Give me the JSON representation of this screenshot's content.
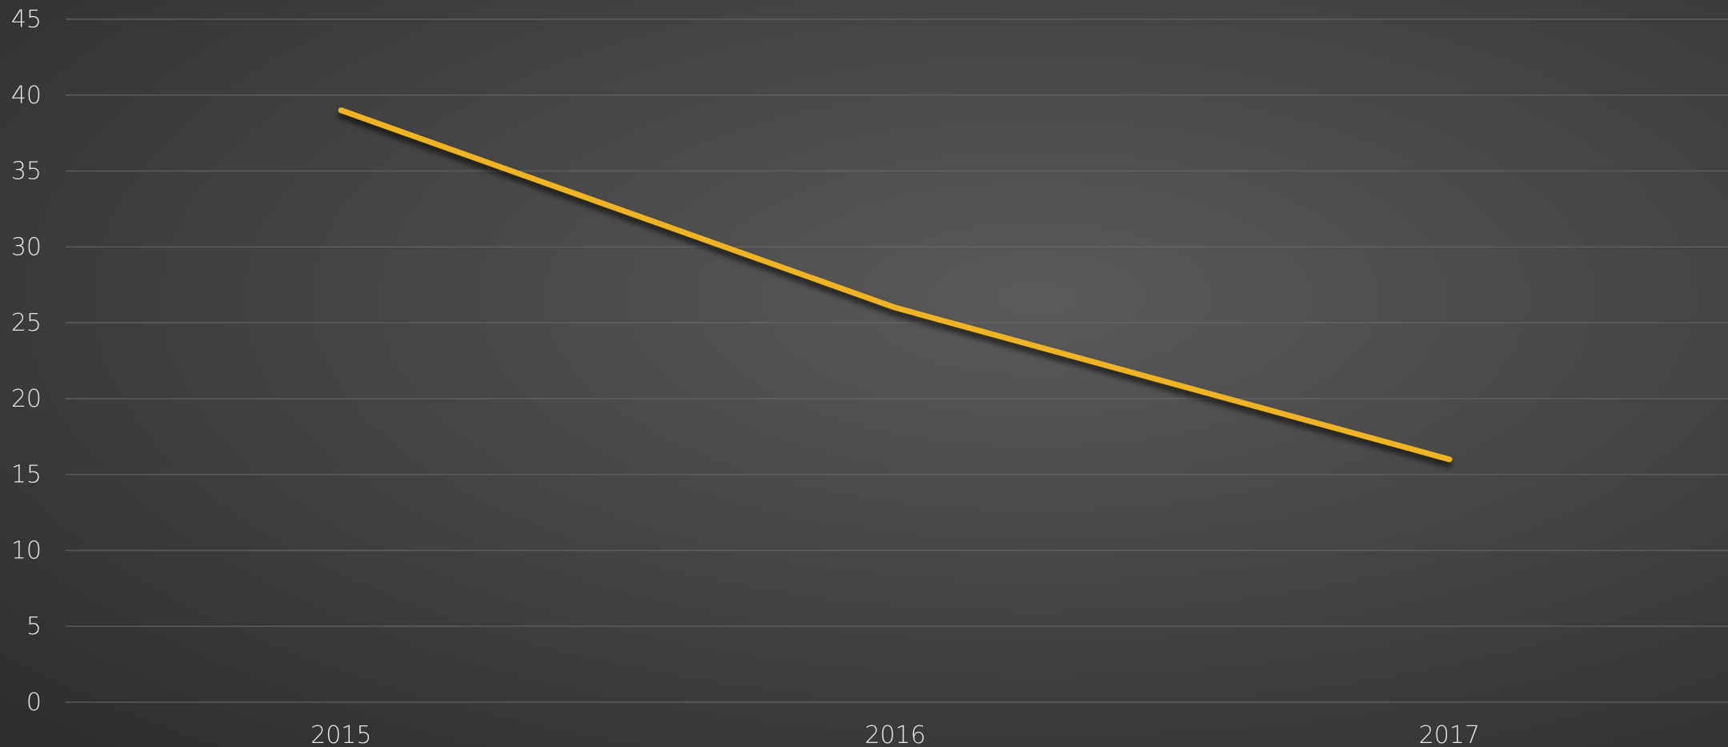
{
  "chart_data": {
    "type": "line",
    "categories": [
      "2015",
      "2016",
      "2017"
    ],
    "series": [
      {
        "values": [
          39,
          26,
          16
        ],
        "color": "#f0b323"
      }
    ],
    "ylim": [
      0,
      45
    ],
    "yticks": [
      "0",
      "5",
      "10",
      "15",
      "20",
      "25",
      "30",
      "35",
      "40",
      "45"
    ],
    "grid": true,
    "legend": "none",
    "title": "",
    "xlabel": "",
    "ylabel": ""
  }
}
